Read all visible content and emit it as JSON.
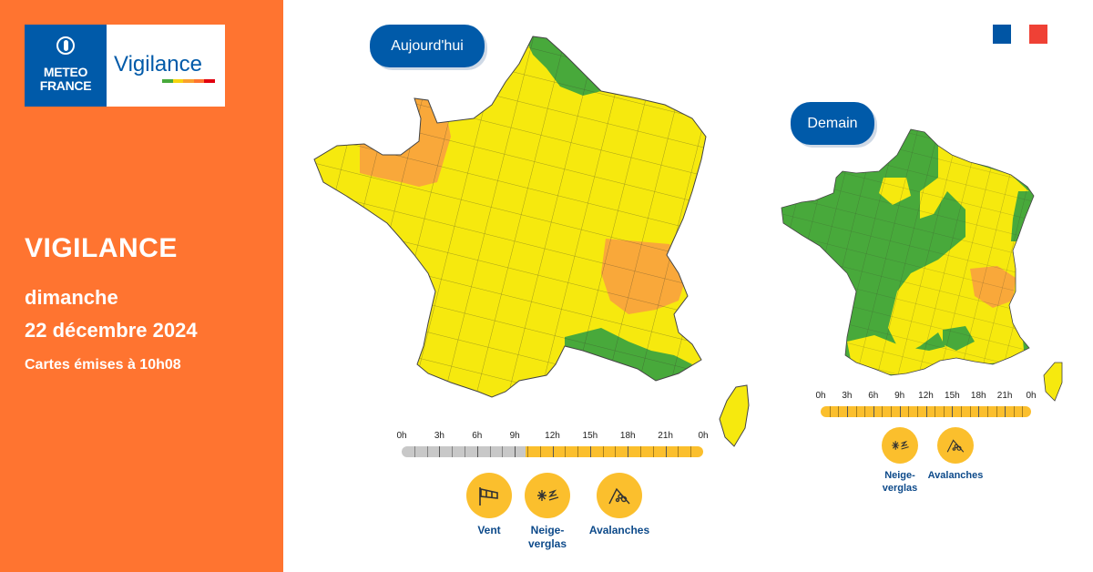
{
  "brand": {
    "logo_line1": "METEO",
    "logo_line2": "FRANCE",
    "product": "Vigilance",
    "bar_colors": [
      "#48a93b",
      "#f6d40e",
      "#f9a12e",
      "#ff7430",
      "#e1000f"
    ]
  },
  "panel": {
    "title": "VIGILANCE",
    "day": "dimanche",
    "date": "22 décembre 2024",
    "issued": "Cartes émises à 10h08",
    "background": "#ff7430"
  },
  "legend_colors": {
    "green": "#48a93b",
    "yellow": "#f6e90e",
    "orange": "#f9a83a",
    "grey": "#c8c8c8",
    "pill": "#005aa9"
  },
  "flag_colors": [
    "#0055a4",
    "#ffffff",
    "#ef4135"
  ],
  "today": {
    "label": "Aujourd'hui",
    "timeline": {
      "ticks": [
        "0h",
        "3h",
        "6h",
        "9h",
        "12h",
        "15h",
        "18h",
        "21h",
        "0h"
      ],
      "past_fraction": 0.41,
      "level_color": "#fbbf2d"
    },
    "hazards": [
      {
        "icon": "wind-icon",
        "label_line1": "Vent",
        "label_line2": ""
      },
      {
        "icon": "snow-ice-icon",
        "label_line1": "Neige-",
        "label_line2": "verglas"
      },
      {
        "icon": "avalanche-icon",
        "label_line1": "Avalanches",
        "label_line2": ""
      }
    ],
    "level_summary": "majority yellow; orange in Brittany/Normandy and northern Alps; green in far north and Mediterranean coast"
  },
  "tomorrow": {
    "label": "Demain",
    "timeline": {
      "ticks": [
        "0h",
        "3h",
        "6h",
        "9h",
        "12h",
        "15h",
        "18h",
        "21h",
        "0h"
      ],
      "past_fraction": 0,
      "level_color": "#fbbf2d"
    },
    "hazards": [
      {
        "icon": "snow-ice-icon",
        "label_line1": "Neige-",
        "label_line2": "verglas"
      },
      {
        "icon": "avalanche-icon",
        "label_line1": "Avalanches",
        "label_line2": ""
      }
    ],
    "level_summary": "green across north-west, centre and south-west; yellow in east and south; orange in northern Alps"
  }
}
